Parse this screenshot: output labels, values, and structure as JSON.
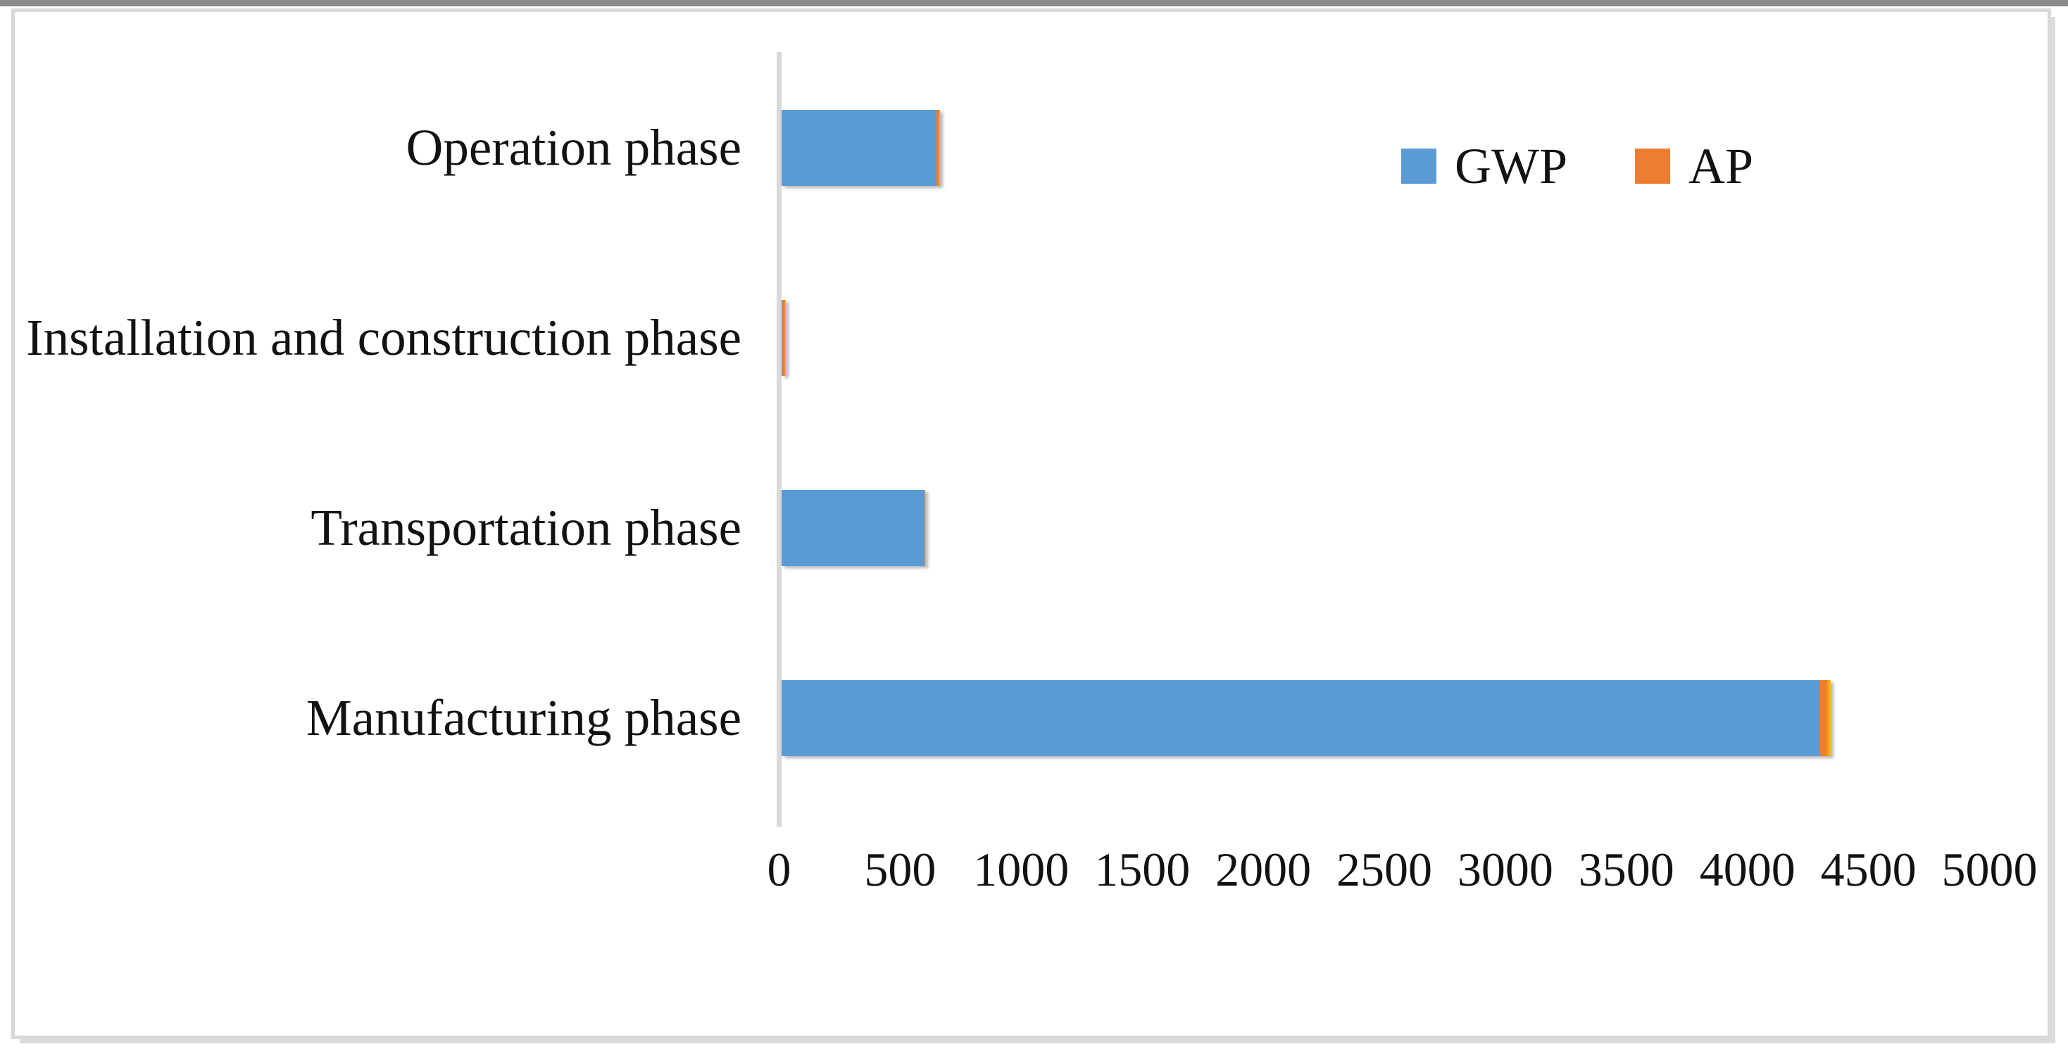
{
  "chart_data": {
    "type": "bar",
    "orientation": "horizontal",
    "stacked": true,
    "title": "",
    "xlabel": "",
    "ylabel": "",
    "categories": [
      "Operation phase",
      "Installation and construction phase",
      "Transportation phase",
      "Manufacturing phase"
    ],
    "series": [
      {
        "name": "GWP",
        "color": "#5B9BD5",
        "values": [
          640,
          3,
          590,
          4290
        ]
      },
      {
        "name": "AP",
        "color": "#ED7D31",
        "values": [
          15,
          13,
          2,
          45
        ]
      }
    ],
    "x_axis": {
      "min": 0,
      "max": 5000,
      "tick_interval": 500,
      "tick_labels": [
        "0",
        "500",
        "1000",
        "1500",
        "2000",
        "2500",
        "3000",
        "3500",
        "4000",
        "4500",
        "5000"
      ]
    },
    "legend": {
      "position": "top-right",
      "entries": [
        {
          "label": "GWP",
          "color": "#5B9BD5"
        },
        {
          "label": "AP",
          "color": "#ED7D31"
        }
      ]
    },
    "grid": false,
    "colors": {
      "axis_line": "#D9D9D9",
      "figure_border": "#D9D9D9",
      "ap_edge_highlight": "#FFC000",
      "background": "#FFFFFF",
      "text": "#121212"
    }
  }
}
